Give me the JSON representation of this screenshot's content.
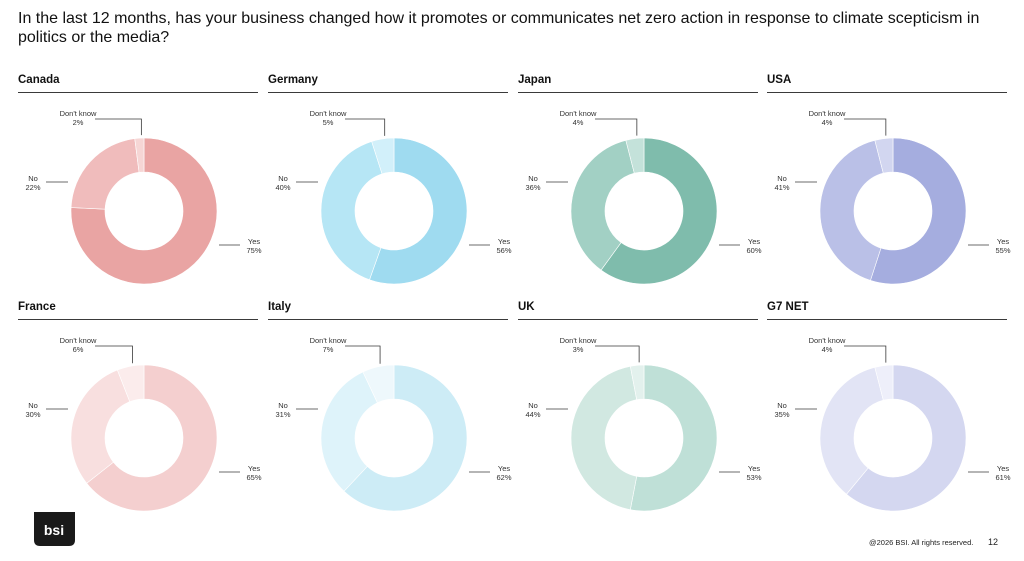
{
  "title": "In the last 12 months, has your business changed how it promotes or communicates net zero action in response to climate scepticism in politics or the media?",
  "footer": "@2026 BSI. All rights reserved.",
  "page_number": "12",
  "logo_text": "bsi",
  "chart_data": [
    {
      "type": "pie",
      "title": "Canada",
      "categories": [
        "Yes",
        "No",
        "Don't know"
      ],
      "values": [
        75,
        22,
        2
      ],
      "labels": [
        "75%",
        "22%",
        "2%"
      ],
      "colors": [
        "#e9a4a3",
        "#f0bcbc",
        "#f6d6d5"
      ]
    },
    {
      "type": "pie",
      "title": "Germany",
      "categories": [
        "Yes",
        "No",
        "Don't know"
      ],
      "values": [
        56,
        40,
        5
      ],
      "labels": [
        "56%",
        "40%",
        "5%"
      ],
      "colors": [
        "#9fdbf0",
        "#b6e6f5",
        "#d2f0fa"
      ]
    },
    {
      "type": "pie",
      "title": "Japan",
      "categories": [
        "Yes",
        "No",
        "Don't know"
      ],
      "values": [
        60,
        36,
        4
      ],
      "labels": [
        "60%",
        "36%",
        "4%"
      ],
      "colors": [
        "#7fbcac",
        "#a2d0c4",
        "#c4e2da"
      ]
    },
    {
      "type": "pie",
      "title": "USA",
      "categories": [
        "Yes",
        "No",
        "Don't know"
      ],
      "values": [
        55,
        41,
        4
      ],
      "labels": [
        "55%",
        "41%",
        "4%"
      ],
      "colors": [
        "#a5addf",
        "#bac0e7",
        "#d2d6f0"
      ]
    },
    {
      "type": "pie",
      "title": "France",
      "categories": [
        "Yes",
        "No",
        "Don't know"
      ],
      "values": [
        65,
        30,
        6
      ],
      "labels": [
        "65%",
        "30%",
        "6%"
      ],
      "colors": [
        "#f4cfcf",
        "#f8dfdf",
        "#fbecec"
      ]
    },
    {
      "type": "pie",
      "title": "Italy",
      "categories": [
        "Yes",
        "No",
        "Don't know"
      ],
      "values": [
        62,
        31,
        7
      ],
      "labels": [
        "62%",
        "31%",
        "7%"
      ],
      "colors": [
        "#cdecf6",
        "#def3fa",
        "#eef8fc"
      ]
    },
    {
      "type": "pie",
      "title": "UK",
      "categories": [
        "Yes",
        "No",
        "Don't know"
      ],
      "values": [
        53,
        44,
        3
      ],
      "labels": [
        "53%",
        "44%",
        "3%"
      ],
      "colors": [
        "#bfe0d7",
        "#d1e8e1",
        "#e3f1ed"
      ]
    },
    {
      "type": "pie",
      "title": "G7 NET",
      "categories": [
        "Yes",
        "No",
        "Don't know"
      ],
      "values": [
        61,
        35,
        4
      ],
      "labels": [
        "61%",
        "35%",
        "4%"
      ],
      "colors": [
        "#d4d7f0",
        "#e2e4f5",
        "#eeeffa"
      ]
    }
  ]
}
